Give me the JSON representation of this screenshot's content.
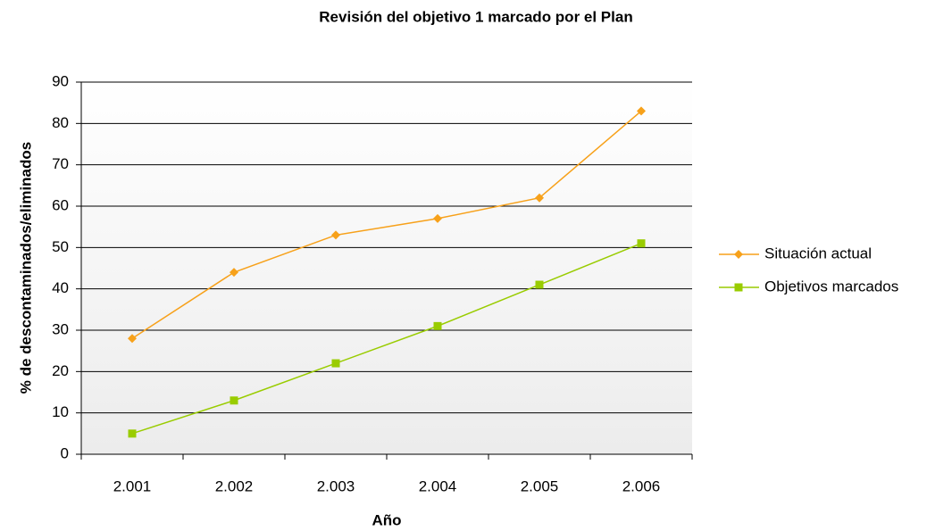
{
  "chart_data": {
    "type": "line",
    "title": "Revisión del objetivo 1 marcado por el Plan",
    "x_label": "Año",
    "y_label": "% de descontaminados/eliminados",
    "categories": [
      "2.001",
      "2.002",
      "2.003",
      "2.004",
      "2.005",
      "2.006"
    ],
    "series": [
      {
        "name": "Situación actual",
        "color": "#f7a11a",
        "marker": "diamond",
        "values": [
          28,
          44,
          53,
          57,
          62,
          83
        ]
      },
      {
        "name": "Objetivos marcados",
        "color": "#99cc00",
        "marker": "square",
        "values": [
          5,
          13,
          22,
          31,
          41,
          51
        ]
      }
    ],
    "ylim": [
      0,
      90
    ],
    "yticks": [
      0,
      10,
      20,
      30,
      40,
      50,
      60,
      70,
      80,
      90
    ],
    "grid": true,
    "legend": "right"
  }
}
